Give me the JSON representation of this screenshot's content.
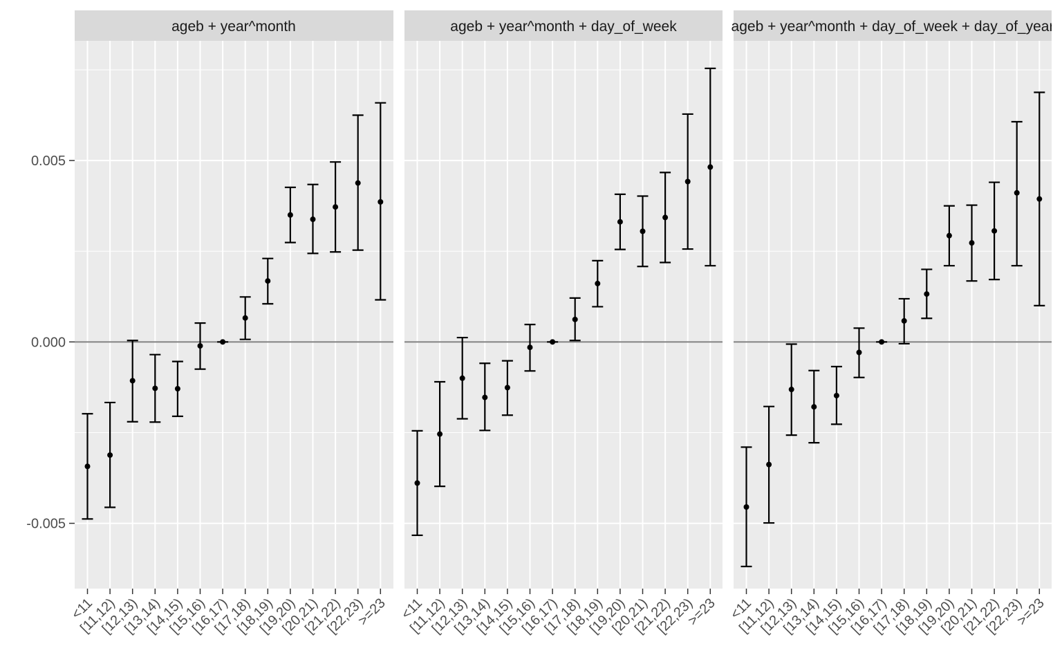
{
  "chart_data": {
    "type": "scatter",
    "subtype": "errorbar-facets",
    "title": "",
    "xlabel": "",
    "ylabel": "",
    "ylim": [
      -0.0068,
      0.0083
    ],
    "yticks": [
      -0.005,
      0.0,
      0.005
    ],
    "ytick_labels": [
      "-0.005",
      "0.000",
      "0.005"
    ],
    "reference_line_y": 0,
    "grid": true,
    "categories": [
      "<11",
      "[11,12)",
      "[12,13)",
      "[13,14)",
      "[14,15)",
      "[15,16)",
      "[16,17)",
      "[17,18)",
      "[18,19)",
      "[19,20)",
      "[20,21)",
      "[21,22)",
      "[22,23)",
      ">=23"
    ],
    "panels": [
      {
        "title": "ageb + year^month",
        "estimate": [
          -0.00343,
          -0.00312,
          -0.00107,
          -0.00128,
          -0.00129,
          -0.00011,
          0.0,
          0.00066,
          0.00168,
          0.0035,
          0.00338,
          0.00372,
          0.00438,
          0.00386
        ],
        "lower": [
          -0.00488,
          -0.00456,
          -0.0022,
          -0.00221,
          -0.00205,
          -0.00075,
          0.0,
          7e-05,
          0.00105,
          0.00274,
          0.00244,
          0.00248,
          0.00253,
          0.00116
        ],
        "upper": [
          -0.00198,
          -0.00167,
          4e-05,
          -0.00035,
          -0.00054,
          0.00052,
          0.0,
          0.00124,
          0.0023,
          0.00426,
          0.00434,
          0.00496,
          0.00625,
          0.00659
        ]
      },
      {
        "title": "ageb + year^month + day_of_week",
        "estimate": [
          -0.00389,
          -0.00254,
          -0.001,
          -0.00153,
          -0.00126,
          -0.00015,
          0.0,
          0.00062,
          0.00161,
          0.00331,
          0.00305,
          0.00343,
          0.00442,
          0.00482
        ],
        "lower": [
          -0.00533,
          -0.00398,
          -0.00212,
          -0.00244,
          -0.00202,
          -0.0008,
          0.0,
          4e-05,
          0.00097,
          0.00255,
          0.00208,
          0.00219,
          0.00256,
          0.0021
        ],
        "upper": [
          -0.00245,
          -0.0011,
          0.00012,
          -0.00059,
          -0.00052,
          0.00048,
          0.0,
          0.00121,
          0.00224,
          0.00407,
          0.00402,
          0.00467,
          0.00628,
          0.00754
        ]
      },
      {
        "title": "ageb + year^month + day_of_week + day_of_year",
        "estimate": [
          -0.00455,
          -0.00338,
          -0.00131,
          -0.00179,
          -0.00148,
          -0.00029,
          0.0,
          0.00058,
          0.00132,
          0.00293,
          0.00273,
          0.00306,
          0.00411,
          0.00394
        ],
        "lower": [
          -0.00619,
          -0.00499,
          -0.00257,
          -0.00278,
          -0.00227,
          -0.00098,
          0.0,
          -5e-05,
          0.00065,
          0.0021,
          0.00168,
          0.00172,
          0.0021,
          0.001
        ],
        "upper": [
          -0.0029,
          -0.00178,
          -6e-05,
          -0.00079,
          -0.00068,
          0.00038,
          0.0,
          0.00119,
          0.002,
          0.00375,
          0.00377,
          0.0044,
          0.00607,
          0.00688
        ]
      }
    ],
    "colors": {
      "panel_background": "#ebebeb",
      "strip_background": "#d9d9d9",
      "gridline": "#ffffff",
      "reference_line": "#808080",
      "point": "#000000",
      "tick_text": "#4d4d4d",
      "strip_text": "#1a1a1a"
    }
  }
}
